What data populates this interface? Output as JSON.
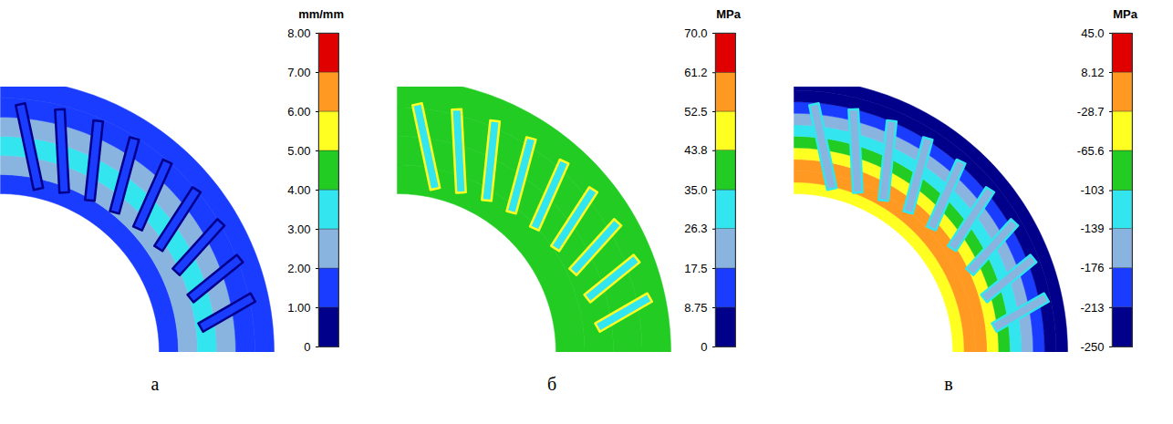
{
  "chart_data": [
    {
      "type": "contour",
      "panel": "а",
      "colorbar": {
        "title": "mm/mm",
        "range": [
          0,
          8
        ],
        "ticks": [
          0,
          {
            "value": 1,
            "label": "1.00"
          },
          {
            "value": 2,
            "label": "2.00"
          },
          {
            "value": 3,
            "label": "3.00"
          },
          {
            "value": 4,
            "label": "4.00"
          },
          {
            "value": 5,
            "label": "5.00"
          },
          {
            "value": 6,
            "label": "6.00"
          },
          {
            "value": 7,
            "label": "7.00"
          },
          {
            "value": 8,
            "label": "8.00"
          }
        ],
        "colors": [
          "#00008b",
          "#1a3cff",
          "#8ab4e0",
          "#33e5ee",
          "#22cc22",
          "#ffff22",
          "#ff9922",
          "#e00000"
        ]
      },
      "field_bands": [
        1.5,
        2.5,
        3.5,
        2.5,
        1.5,
        1.5
      ],
      "slot_value": 1.5,
      "slot_outline_value": 0.5
    },
    {
      "type": "contour",
      "panel": "б",
      "colorbar": {
        "title": "MPa",
        "range": [
          0,
          70
        ],
        "ticks": [
          0,
          8.75,
          17.5,
          26.3,
          {
            "value": 35,
            "label": "35.0"
          },
          43.8,
          52.5,
          61.2,
          {
            "value": 70,
            "label": "70.0"
          }
        ],
        "colors": [
          "#00008b",
          "#1a3cff",
          "#8ab4e0",
          "#33e5ee",
          "#22cc22",
          "#ffff22",
          "#ff9922",
          "#e00000"
        ]
      },
      "field_bands": [
        40,
        40,
        40,
        40
      ],
      "slot_value": 30,
      "slot_outline_value": 48
    },
    {
      "type": "contour",
      "panel": "в",
      "colorbar": {
        "title": "MPa",
        "range": [
          -250,
          45
        ],
        "ticks": [
          -250,
          -213,
          -176,
          -139,
          -103,
          -65.6,
          -28.7,
          8.12,
          {
            "value": 45,
            "label": "45.0"
          }
        ],
        "colors": [
          "#00008b",
          "#1a3cff",
          "#8ab4e0",
          "#33e5ee",
          "#22cc22",
          "#ffff22",
          "#ff9922",
          "#e00000"
        ]
      },
      "field_bands": [
        -47,
        -10,
        -10,
        -47,
        -84,
        -120,
        -157,
        -195,
        -230,
        -230
      ],
      "slot_value": -157,
      "slot_outline_value": -120
    }
  ]
}
